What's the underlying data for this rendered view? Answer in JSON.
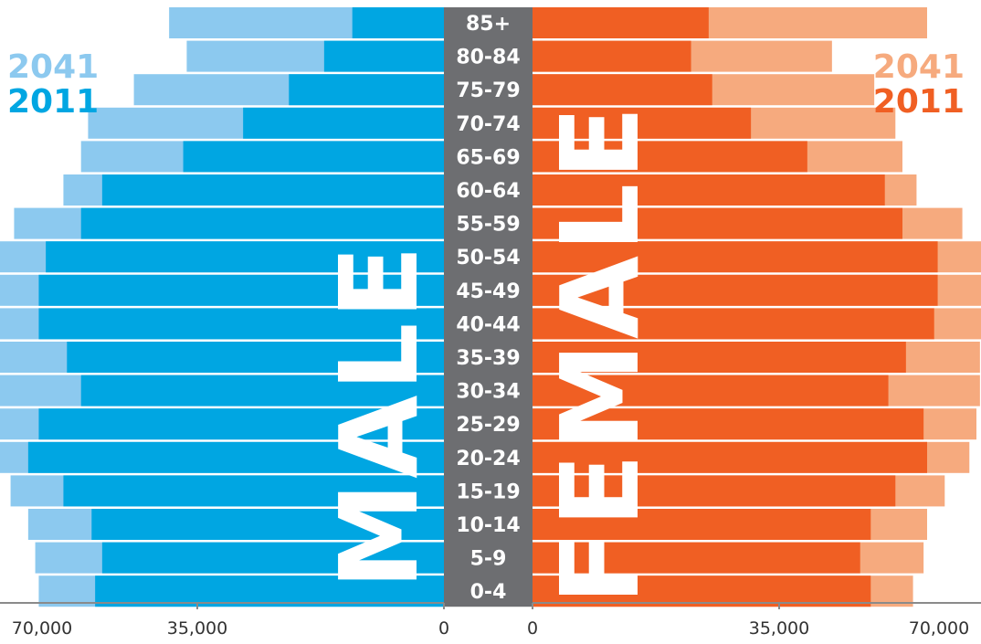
{
  "chart_data": {
    "type": "bar",
    "orientation": "horizontal-population-pyramid",
    "categories": [
      "85+",
      "80-84",
      "75-79",
      "70-74",
      "65-69",
      "60-64",
      "55-59",
      "50-54",
      "45-49",
      "40-44",
      "35-39",
      "30-34",
      "25-29",
      "20-24",
      "15-19",
      "10-14",
      "5-9",
      "0-4"
    ],
    "series": [
      {
        "name": "2041",
        "side": "MALE",
        "values": [
          39000,
          36500,
          44000,
          50500,
          51500,
          54000,
          61000,
          65500,
          66500,
          65500,
          64500,
          65000,
          66000,
          65500,
          61500,
          59000,
          58000,
          57500
        ]
      },
      {
        "name": "2011",
        "side": "MALE",
        "values": [
          13000,
          17000,
          22000,
          28500,
          37000,
          48500,
          51500,
          56500,
          57500,
          57500,
          53500,
          51500,
          57500,
          59000,
          54000,
          50000,
          48500,
          49500
        ]
      },
      {
        "name": "2041",
        "side": "FEMALE",
        "values": [
          56000,
          42500,
          48500,
          51500,
          52500,
          54500,
          61000,
          64500,
          64500,
          64500,
          63500,
          63500,
          63000,
          62000,
          58500,
          56000,
          55500,
          54000
        ]
      },
      {
        "name": "2011",
        "side": "FEMALE",
        "values": [
          25000,
          22500,
          25500,
          31000,
          39000,
          50000,
          52500,
          57500,
          57500,
          57000,
          53000,
          50500,
          55500,
          56000,
          51500,
          48000,
          46500,
          48000
        ]
      }
    ],
    "side_labels": [
      "MALE",
      "FEMALE"
    ],
    "legend": {
      "left": [
        "2041",
        "2011"
      ],
      "right": [
        "2041",
        "2011"
      ],
      "placement": "top-left and top-right"
    },
    "xlim": [
      0,
      70000
    ],
    "x_ticks_left": [
      "70,000",
      "35,000",
      "0"
    ],
    "x_ticks_right": [
      "0",
      "35,000",
      "70,000"
    ],
    "colors": {
      "male_2041": "#8cc9ef",
      "male_2011": "#00a6e2",
      "female_2041": "#f6aa7e",
      "female_2011": "#f05f23",
      "center_band": "#6d6e71",
      "axis": "#8a8a8a"
    }
  }
}
